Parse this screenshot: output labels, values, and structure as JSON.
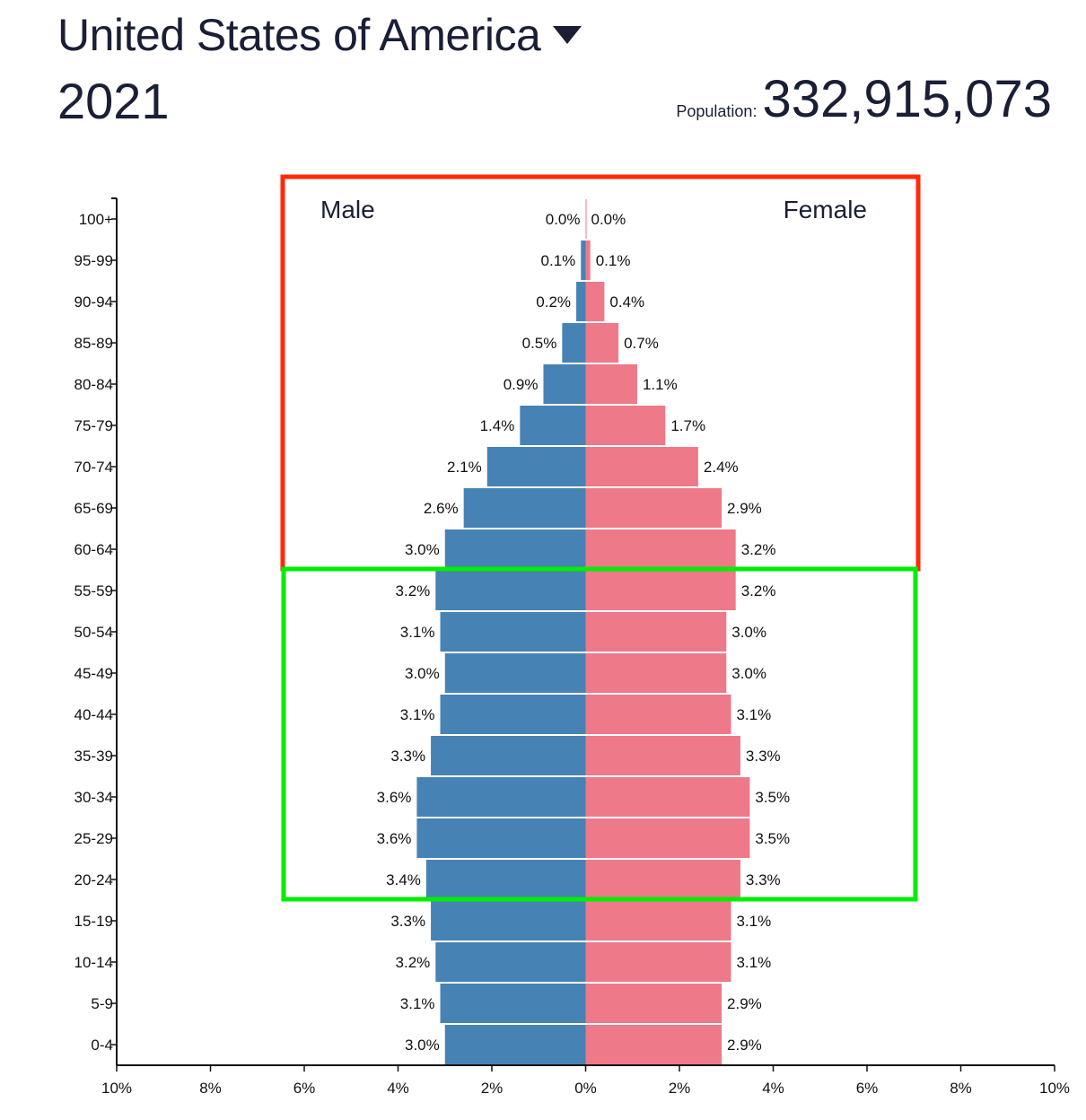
{
  "header": {
    "country": "United States of America",
    "year": "2021",
    "population_label": "Population:",
    "population_value": "332,915,073"
  },
  "chart_data": {
    "type": "bar",
    "orientation": "horizontal",
    "categories": [
      "100+",
      "95-99",
      "90-94",
      "85-89",
      "80-84",
      "75-79",
      "70-74",
      "65-69",
      "60-64",
      "55-59",
      "50-54",
      "45-49",
      "40-44",
      "35-39",
      "30-34",
      "25-29",
      "20-24",
      "15-19",
      "10-14",
      "5-9",
      "0-4"
    ],
    "series": [
      {
        "name": "Male",
        "color": "#4682b4",
        "values": [
          0.0,
          0.1,
          0.2,
          0.5,
          0.9,
          1.4,
          2.1,
          2.6,
          3.0,
          3.2,
          3.1,
          3.0,
          3.1,
          3.3,
          3.6,
          3.6,
          3.4,
          3.3,
          3.2,
          3.1,
          3.0
        ],
        "labels": [
          "0.0%",
          "0.1%",
          "0.2%",
          "0.5%",
          "0.9%",
          "1.4%",
          "2.1%",
          "2.6%",
          "3.0%",
          "3.2%",
          "3.1%",
          "3.0%",
          "3.1%",
          "3.3%",
          "3.6%",
          "3.6%",
          "3.4%",
          "3.3%",
          "3.2%",
          "3.1%",
          "3.0%"
        ]
      },
      {
        "name": "Female",
        "color": "#ee7989",
        "values": [
          0.0,
          0.1,
          0.4,
          0.7,
          1.1,
          1.7,
          2.4,
          2.9,
          3.2,
          3.2,
          3.0,
          3.0,
          3.1,
          3.3,
          3.5,
          3.5,
          3.3,
          3.1,
          3.1,
          2.9,
          2.9
        ],
        "labels": [
          "0.0%",
          "0.1%",
          "0.4%",
          "0.7%",
          "1.1%",
          "1.7%",
          "2.4%",
          "2.9%",
          "3.2%",
          "3.2%",
          "3.0%",
          "3.0%",
          "3.1%",
          "3.3%",
          "3.5%",
          "3.5%",
          "3.3%",
          "3.1%",
          "3.1%",
          "2.9%",
          "2.9%"
        ]
      }
    ],
    "xlim": [
      -10,
      10
    ],
    "xticks": [
      -10,
      -8,
      -6,
      -4,
      -2,
      0,
      2,
      4,
      6,
      8,
      10
    ],
    "xtick_labels": [
      "10%",
      "8%",
      "6%",
      "4%",
      "2%",
      "0%",
      "2%",
      "4%",
      "6%",
      "8%",
      "10%"
    ],
    "highlights": [
      {
        "color": "#ff2a0a",
        "from": "100+",
        "to": "60-64"
      },
      {
        "color": "#00ee00",
        "from": "55-59",
        "to": "20-24"
      }
    ]
  }
}
